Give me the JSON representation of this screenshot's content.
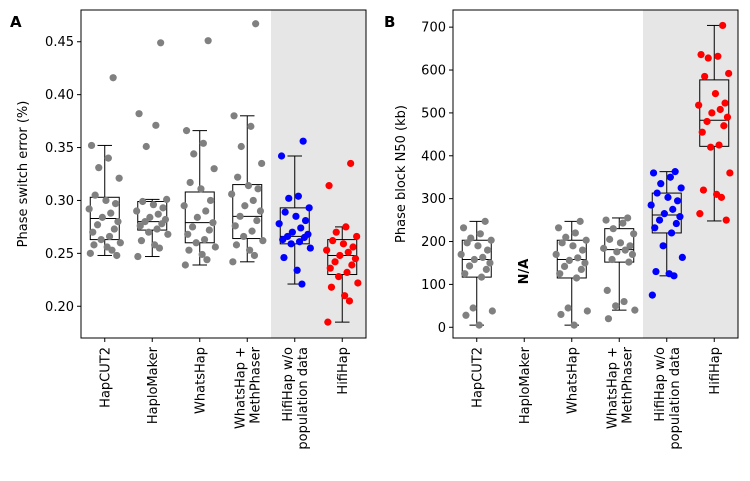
{
  "panels": [
    {
      "letter": "A",
      "ylabel": "Phase switch error (%)",
      "yticks": [
        "0.20",
        "0.25",
        "0.30",
        "0.35",
        "0.40",
        "0.45"
      ],
      "na_label": ""
    },
    {
      "letter": "B",
      "ylabel": "Phase block N50 (kb)",
      "yticks": [
        "0",
        "100",
        "200",
        "300",
        "400",
        "500",
        "600",
        "700"
      ],
      "na_label": "N/A"
    }
  ],
  "categories": [
    [
      "HapCUT2"
    ],
    [
      "HaploMaker"
    ],
    [
      "WhatsHap"
    ],
    [
      "WhatsHap +",
      "MethPhaser"
    ],
    [
      "HifiHap w/o",
      "population data"
    ],
    [
      "HifiHap"
    ]
  ],
  "colors": {
    "gray": "#808080",
    "blue": "#0000ff",
    "red": "#ff0000",
    "shade": "#e6e6e6"
  },
  "chart_data": [
    {
      "type": "box+strip",
      "panel": "A",
      "ylabel": "Phase switch error (%)",
      "ylim": [
        0.17,
        0.48
      ],
      "shaded_from_category": "HifiHap w/o population data",
      "series": [
        {
          "name": "HapCUT2",
          "color": "gray",
          "box": {
            "whislo": 0.248,
            "q1": 0.263,
            "med": 0.283,
            "q3": 0.303,
            "whishi": 0.352
          },
          "points": [
            0.416,
            0.352,
            0.34,
            0.331,
            0.321,
            0.305,
            0.3,
            0.297,
            0.292,
            0.288,
            0.284,
            0.28,
            0.277,
            0.273,
            0.27,
            0.266,
            0.263,
            0.26,
            0.258,
            0.256,
            0.253,
            0.25,
            0.248
          ]
        },
        {
          "name": "HaploMaker",
          "color": "gray",
          "box": {
            "whislo": 0.247,
            "q1": 0.272,
            "med": 0.28,
            "q3": 0.299,
            "whishi": 0.301
          },
          "points": [
            0.449,
            0.382,
            0.371,
            0.351,
            0.301,
            0.299,
            0.296,
            0.293,
            0.29,
            0.287,
            0.284,
            0.282,
            0.28,
            0.278,
            0.276,
            0.273,
            0.27,
            0.268,
            0.262,
            0.258,
            0.255,
            0.247
          ]
        },
        {
          "name": "WhatsHap",
          "color": "gray",
          "box": {
            "whislo": 0.239,
            "q1": 0.26,
            "med": 0.279,
            "q3": 0.308,
            "whishi": 0.366
          },
          "points": [
            0.451,
            0.366,
            0.354,
            0.344,
            0.33,
            0.317,
            0.311,
            0.3,
            0.295,
            0.29,
            0.284,
            0.279,
            0.275,
            0.272,
            0.268,
            0.263,
            0.26,
            0.256,
            0.253,
            0.249,
            0.244,
            0.239
          ]
        },
        {
          "name": "WhatsHap + MethPhaser",
          "color": "gray",
          "box": {
            "whislo": 0.242,
            "q1": 0.264,
            "med": 0.285,
            "q3": 0.315,
            "whishi": 0.38
          },
          "points": [
            0.467,
            0.38,
            0.37,
            0.351,
            0.335,
            0.322,
            0.314,
            0.311,
            0.306,
            0.3,
            0.295,
            0.29,
            0.285,
            0.281,
            0.276,
            0.271,
            0.266,
            0.262,
            0.258,
            0.253,
            0.248,
            0.242
          ]
        },
        {
          "name": "HifiHap w/o population data",
          "color": "blue",
          "box": {
            "whislo": 0.221,
            "q1": 0.259,
            "med": 0.266,
            "q3": 0.293,
            "whishi": 0.342
          },
          "points": [
            0.356,
            0.342,
            0.304,
            0.302,
            0.293,
            0.289,
            0.285,
            0.281,
            0.278,
            0.274,
            0.27,
            0.268,
            0.266,
            0.265,
            0.263,
            0.261,
            0.259,
            0.255,
            0.246,
            0.234,
            0.221
          ]
        },
        {
          "name": "HifiHap",
          "color": "red",
          "box": {
            "whislo": 0.185,
            "q1": 0.23,
            "med": 0.248,
            "q3": 0.263,
            "whishi": 0.275
          },
          "points": [
            0.335,
            0.314,
            0.275,
            0.27,
            0.266,
            0.262,
            0.259,
            0.256,
            0.253,
            0.251,
            0.248,
            0.245,
            0.242,
            0.239,
            0.236,
            0.232,
            0.228,
            0.222,
            0.218,
            0.21,
            0.205,
            0.185
          ]
        }
      ]
    },
    {
      "type": "box+strip",
      "panel": "B",
      "ylabel": "Phase block N50 (kb)",
      "ylim": [
        -25,
        740
      ],
      "shaded_from_category": "HifiHap w/o population data",
      "series": [
        {
          "name": "HapCUT2",
          "color": "gray",
          "box": {
            "whislo": 5,
            "q1": 117,
            "med": 158,
            "q3": 203,
            "whishi": 247
          },
          "points": [
            247,
            232,
            218,
            208,
            203,
            197,
            190,
            180,
            170,
            163,
            158,
            150,
            143,
            135,
            125,
            117,
            45,
            38,
            28,
            5
          ]
        },
        {
          "name": "HaploMaker",
          "color": "gray",
          "box": null,
          "points": []
        },
        {
          "name": "WhatsHap",
          "color": "gray",
          "box": {
            "whislo": 5,
            "q1": 115,
            "med": 158,
            "q3": 203,
            "whishi": 247
          },
          "points": [
            247,
            232,
            220,
            210,
            203,
            197,
            190,
            180,
            170,
            162,
            156,
            150,
            142,
            135,
            125,
            115,
            45,
            38,
            30,
            5
          ]
        },
        {
          "name": "WhatsHap + MethPhaser",
          "color": "gray",
          "box": {
            "whislo": 40,
            "q1": 152,
            "med": 181,
            "q3": 230,
            "whishi": 255
          },
          "points": [
            255,
            250,
            243,
            230,
            218,
            205,
            197,
            190,
            184,
            180,
            176,
            170,
            158,
            152,
            86,
            60,
            50,
            40,
            20
          ]
        },
        {
          "name": "HifiHap w/o population data",
          "color": "blue",
          "box": {
            "whislo": 120,
            "q1": 220,
            "med": 262,
            "q3": 313,
            "whishi": 363
          },
          "points": [
            363,
            360,
            350,
            335,
            325,
            313,
            303,
            295,
            285,
            275,
            265,
            258,
            250,
            242,
            232,
            220,
            190,
            163,
            130,
            125,
            120,
            75
          ]
        },
        {
          "name": "HifiHap",
          "color": "red",
          "box": {
            "whislo": 248,
            "q1": 422,
            "med": 483,
            "q3": 577,
            "whishi": 704
          },
          "points": [
            704,
            636,
            632,
            628,
            592,
            585,
            545,
            523,
            518,
            508,
            500,
            490,
            480,
            470,
            455,
            425,
            420,
            360,
            320,
            310,
            303,
            265,
            250
          ]
        }
      ]
    }
  ]
}
